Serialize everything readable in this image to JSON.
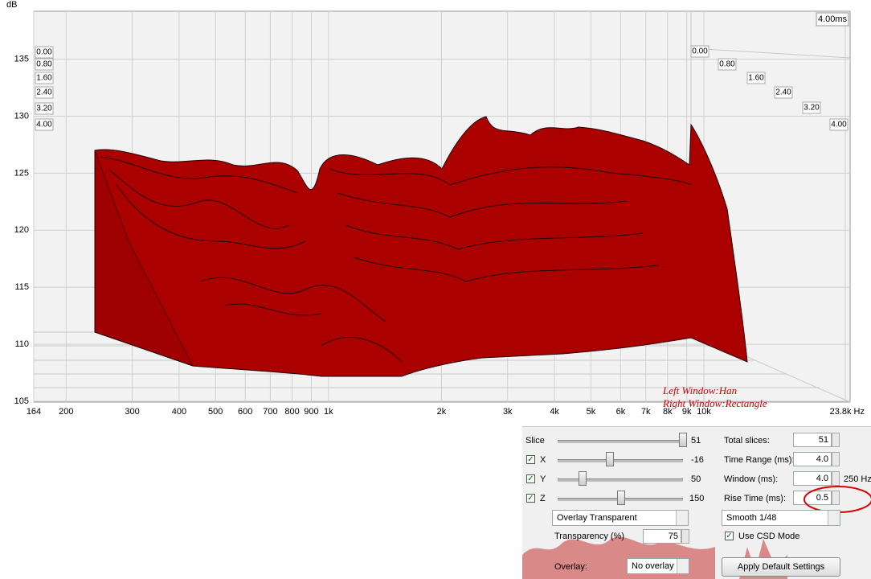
{
  "plot": {
    "y_unit": "dB",
    "ylim": [
      105,
      139.2
    ],
    "yticks": [
      105,
      110,
      115,
      120,
      125,
      130,
      135
    ],
    "xlim": [
      164,
      23800
    ],
    "xticks": [
      {
        "value": 164,
        "label": "164"
      },
      {
        "value": 200,
        "label": "200"
      },
      {
        "value": 300,
        "label": "300"
      },
      {
        "value": 400,
        "label": "400"
      },
      {
        "value": 500,
        "label": "500"
      },
      {
        "value": 600,
        "label": "600"
      },
      {
        "value": 700,
        "label": "700"
      },
      {
        "value": 800,
        "label": "800"
      },
      {
        "value": 900,
        "label": "900"
      },
      {
        "value": 1000,
        "label": "1k"
      },
      {
        "value": 2000,
        "label": "2k"
      },
      {
        "value": 3000,
        "label": "3k"
      },
      {
        "value": 4000,
        "label": "4k"
      },
      {
        "value": 5000,
        "label": "5k"
      },
      {
        "value": 6000,
        "label": "6k"
      },
      {
        "value": 7000,
        "label": "7k"
      },
      {
        "value": 8000,
        "label": "8k"
      },
      {
        "value": 9000,
        "label": "9k"
      },
      {
        "value": 10000,
        "label": "10k"
      },
      {
        "value": 23800,
        "label": "23.8k Hz"
      }
    ],
    "time_label": "4.00ms",
    "time_ticks": [
      "0.00",
      "0.80",
      "1.60",
      "2.40",
      "3.20",
      "4.00"
    ],
    "annotations": [
      "Left Window:Han",
      "Right Window:Rectangle"
    ]
  },
  "controls": {
    "slice_label": "Slice",
    "slice_value": "51",
    "x_label": "X",
    "x_value": "-16",
    "y_label": "Y",
    "y_value": "50",
    "z_label": "Z",
    "z_value": "150",
    "total_slices_label": "Total slices:",
    "total_slices": "51",
    "time_range_label": "Time Range (ms):",
    "time_range": "4.0",
    "window_label": "Window (ms):",
    "window": "4.0",
    "window_freq": "250 Hz",
    "rise_time_label": "Rise Time (ms):",
    "rise_time": "0.5",
    "overlay_mode": "Overlay Transparent",
    "smoothing": "Smooth 1/48",
    "transparency_label": "Transparency (%)",
    "transparency": "75",
    "csd_label": "Use CSD Mode",
    "overlay_label": "Overlay:",
    "overlay": "No overlay",
    "apply_button": "Apply Default Settings"
  }
}
